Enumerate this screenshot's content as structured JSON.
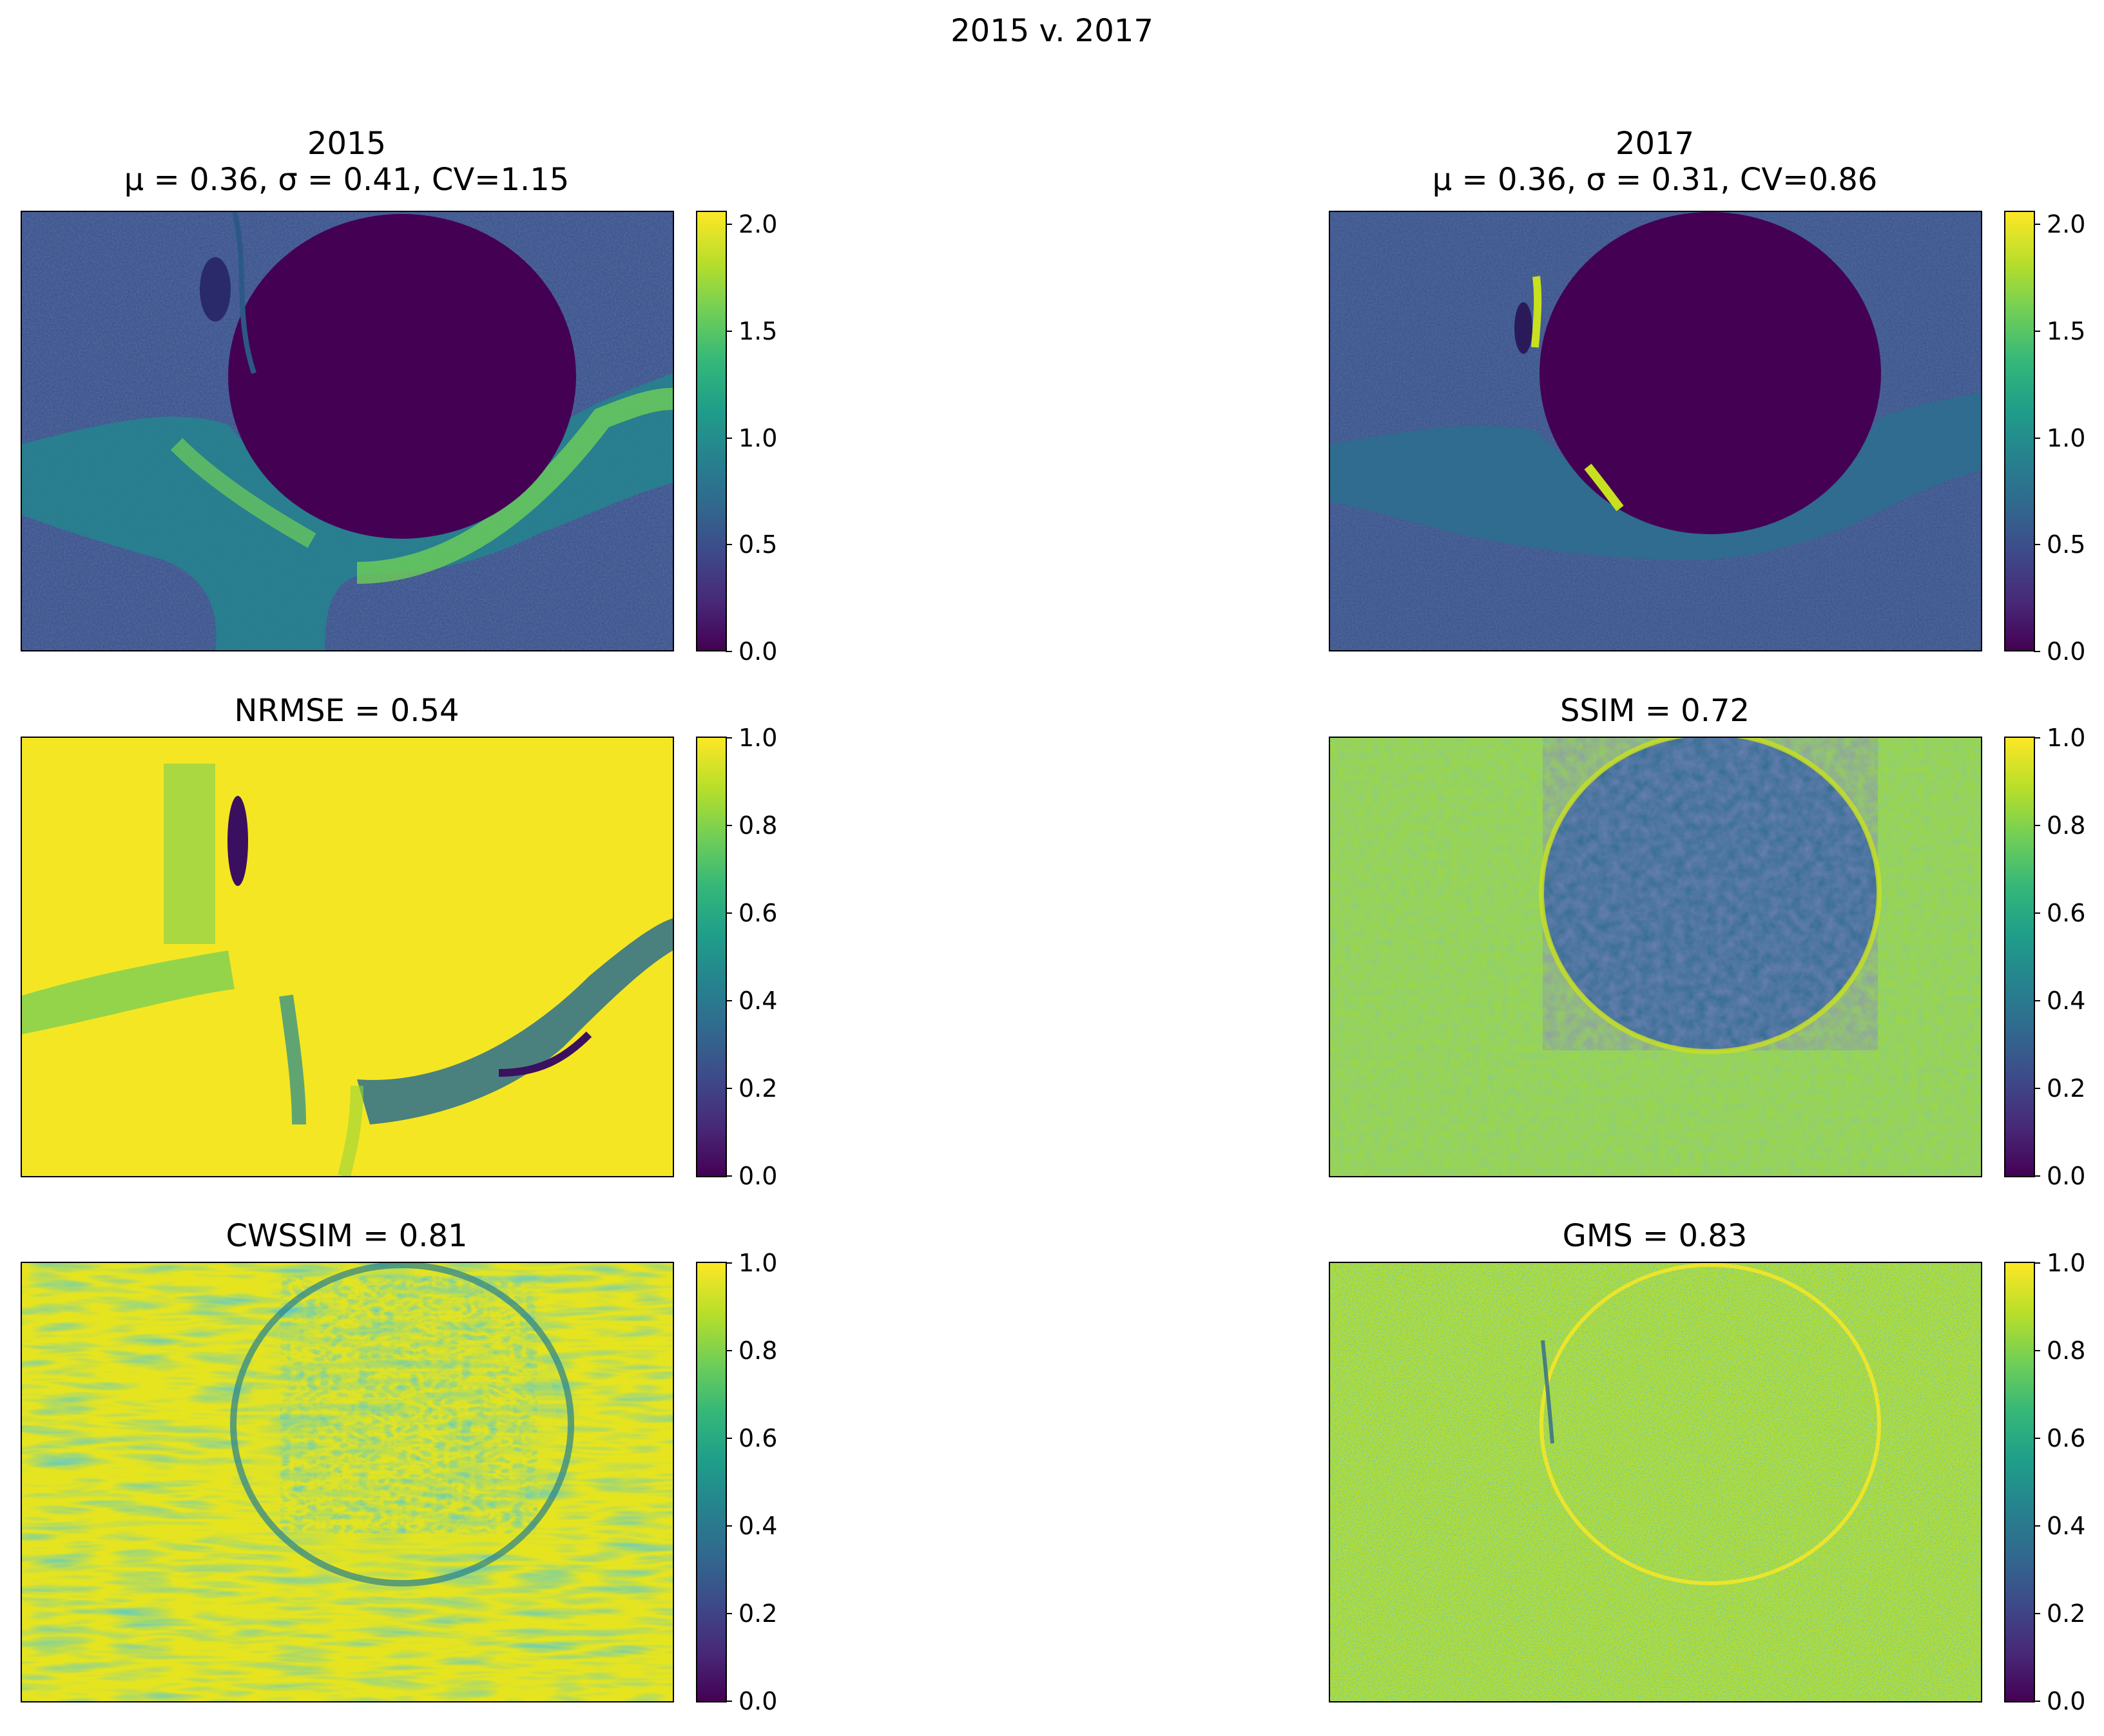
{
  "figure_title": "2015 v. 2017",
  "colormap": [
    "#440154",
    "#482878",
    "#3e4989",
    "#31688e",
    "#26828e",
    "#1f9e89",
    "#35b779",
    "#6ece58",
    "#b5de2b",
    "#fde725"
  ],
  "panels": [
    {
      "id": "img2015",
      "title_lines": [
        "2015",
        "μ = 0.36, σ = 0.41, CV=1.15"
      ],
      "colorbar": {
        "range": [
          0,
          2.05
        ],
        "ticks": [
          "0.0",
          "0.5",
          "1.0",
          "1.5",
          "2.0"
        ]
      }
    },
    {
      "id": "img2017",
      "title_lines": [
        "2017",
        "μ = 0.36, σ = 0.31, CV=0.86"
      ],
      "colorbar": {
        "range": [
          0,
          2.05
        ],
        "ticks": [
          "0.0",
          "0.5",
          "1.0",
          "1.5",
          "2.0"
        ]
      }
    },
    {
      "id": "nrmse",
      "title_lines": [
        "NRMSE = 0.54"
      ],
      "colorbar": {
        "range": [
          0,
          1
        ],
        "ticks": [
          "0.0",
          "0.2",
          "0.4",
          "0.6",
          "0.8",
          "1.0"
        ]
      }
    },
    {
      "id": "ssim",
      "title_lines": [
        "SSIM = 0.72"
      ],
      "colorbar": {
        "range": [
          0,
          1
        ],
        "ticks": [
          "0.0",
          "0.2",
          "0.4",
          "0.6",
          "0.8",
          "1.0"
        ]
      }
    },
    {
      "id": "cwssim",
      "title_lines": [
        "CWSSIM = 0.81"
      ],
      "colorbar": {
        "range": [
          0,
          1
        ],
        "ticks": [
          "0.0",
          "0.2",
          "0.4",
          "0.6",
          "0.8",
          "1.0"
        ]
      }
    },
    {
      "id": "gms",
      "title_lines": [
        "GMS = 0.83"
      ],
      "colorbar": {
        "range": [
          0,
          1
        ],
        "ticks": [
          "0.0",
          "0.2",
          "0.4",
          "0.6",
          "0.8",
          "1.0"
        ]
      }
    }
  ],
  "chart_data": [
    {
      "type": "heatmap",
      "title": "2015",
      "subtitle": "μ = 0.36, σ = 0.41, CV=1.15",
      "mean": 0.36,
      "std": 0.41,
      "cv": 1.15,
      "colorbar_range": [
        0,
        2.05
      ],
      "colorbar_ticks": [
        0.0,
        0.5,
        1.0,
        1.5,
        2.0
      ],
      "xticks": [],
      "yticks": []
    },
    {
      "type": "heatmap",
      "title": "2017",
      "subtitle": "μ = 0.36, σ = 0.31, CV=0.86",
      "mean": 0.36,
      "std": 0.31,
      "cv": 0.86,
      "colorbar_range": [
        0,
        2.05
      ],
      "colorbar_ticks": [
        0.0,
        0.5,
        1.0,
        1.5,
        2.0
      ],
      "xticks": [],
      "yticks": []
    },
    {
      "type": "heatmap",
      "title": "NRMSE = 0.54",
      "metric": "NRMSE",
      "value": 0.54,
      "colorbar_range": [
        0,
        1
      ],
      "colorbar_ticks": [
        0.0,
        0.2,
        0.4,
        0.6,
        0.8,
        1.0
      ]
    },
    {
      "type": "heatmap",
      "title": "SSIM = 0.72",
      "metric": "SSIM",
      "value": 0.72,
      "colorbar_range": [
        0,
        1
      ],
      "colorbar_ticks": [
        0.0,
        0.2,
        0.4,
        0.6,
        0.8,
        1.0
      ]
    },
    {
      "type": "heatmap",
      "title": "CWSSIM = 0.81",
      "metric": "CWSSIM",
      "value": 0.81,
      "colorbar_range": [
        0,
        1
      ],
      "colorbar_ticks": [
        0.0,
        0.2,
        0.4,
        0.6,
        0.8,
        1.0
      ]
    },
    {
      "type": "heatmap",
      "title": "GMS = 0.83",
      "metric": "GMS",
      "value": 0.83,
      "colorbar_range": [
        0,
        1
      ],
      "colorbar_ticks": [
        0.0,
        0.2,
        0.4,
        0.6,
        0.8,
        1.0
      ]
    }
  ]
}
